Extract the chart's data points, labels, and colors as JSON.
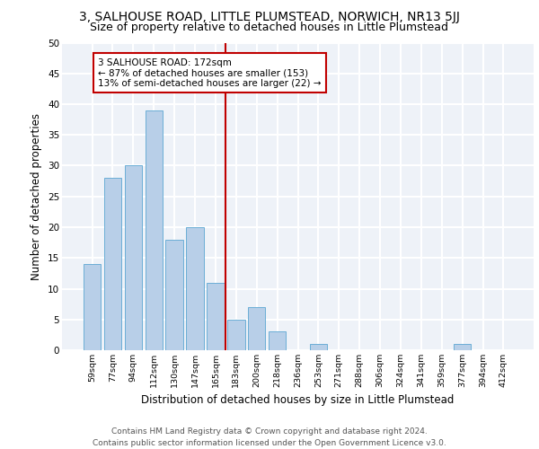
{
  "title1": "3, SALHOUSE ROAD, LITTLE PLUMSTEAD, NORWICH, NR13 5JJ",
  "title2": "Size of property relative to detached houses in Little Plumstead",
  "xlabel": "Distribution of detached houses by size in Little Plumstead",
  "ylabel": "Number of detached properties",
  "bar_labels": [
    "59sqm",
    "77sqm",
    "94sqm",
    "112sqm",
    "130sqm",
    "147sqm",
    "165sqm",
    "183sqm",
    "200sqm",
    "218sqm",
    "236sqm",
    "253sqm",
    "271sqm",
    "288sqm",
    "306sqm",
    "324sqm",
    "341sqm",
    "359sqm",
    "377sqm",
    "394sqm",
    "412sqm"
  ],
  "bar_values": [
    14,
    28,
    30,
    39,
    18,
    20,
    11,
    5,
    7,
    3,
    0,
    1,
    0,
    0,
    0,
    0,
    0,
    0,
    1,
    0,
    0
  ],
  "bar_color": "#b8cfe8",
  "bar_edge_color": "#6baed6",
  "vline_x_index": 7,
  "vline_color": "#c00000",
  "annotation_text": "3 SALHOUSE ROAD: 172sqm\n← 87% of detached houses are smaller (153)\n13% of semi-detached houses are larger (22) →",
  "annotation_box_color": "#c00000",
  "ylim": [
    0,
    50
  ],
  "yticks": [
    0,
    5,
    10,
    15,
    20,
    25,
    30,
    35,
    40,
    45,
    50
  ],
  "footer": "Contains HM Land Registry data © Crown copyright and database right 2024.\nContains public sector information licensed under the Open Government Licence v3.0.",
  "bg_color": "#eef2f8",
  "grid_color": "#ffffff",
  "title1_fontsize": 10,
  "title2_fontsize": 9,
  "xlabel_fontsize": 8.5,
  "ylabel_fontsize": 8.5,
  "footer_fontsize": 6.5
}
